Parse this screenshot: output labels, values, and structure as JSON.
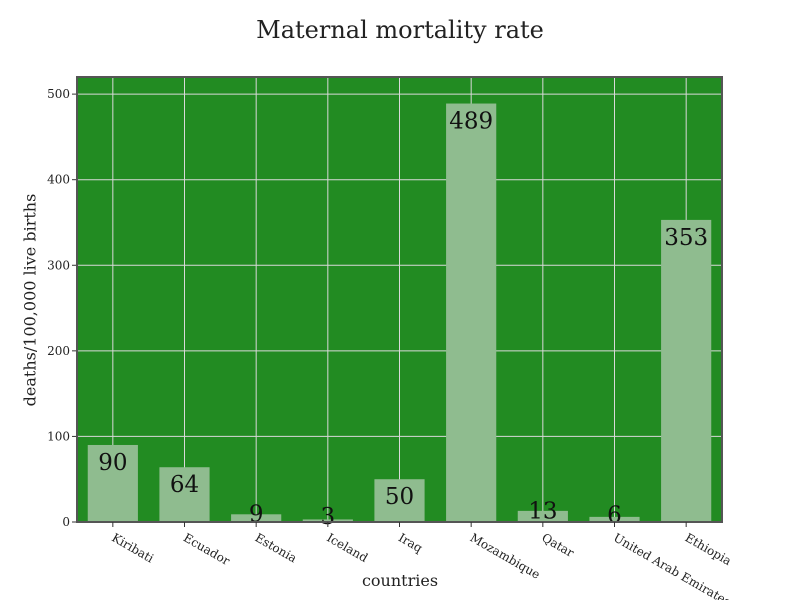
{
  "chart_data": {
    "type": "bar",
    "title": "Maternal mortality rate",
    "xlabel": "countries",
    "ylabel": "deaths/100,000 live births",
    "categories": [
      "Kiribati",
      "Ecuador",
      "Estonia",
      "Iceland",
      "Iraq",
      "Mozambique",
      "Qatar",
      "United Arab Emirates",
      "Ethiopia"
    ],
    "values": [
      90,
      64,
      9,
      3,
      50,
      489,
      13,
      6,
      353
    ],
    "data_labels": [
      "90",
      "64",
      "9",
      "3",
      "50",
      "489",
      "13",
      "6",
      "353"
    ],
    "ylim": [
      0,
      520
    ],
    "yticks": [
      0,
      100,
      200,
      300,
      400,
      500
    ],
    "grid": true,
    "colors": {
      "plot_background": "#228b22",
      "bar": "#8fbc8f",
      "grid": "#d9d9d9",
      "frame": "#555555"
    }
  }
}
